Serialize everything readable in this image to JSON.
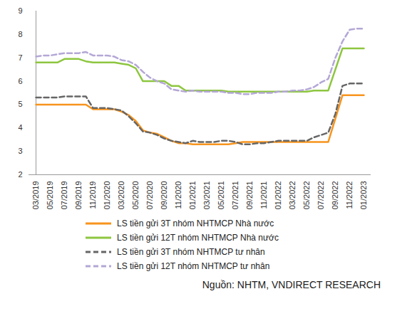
{
  "chart_data": {
    "type": "line",
    "caption": "Nguồn: NHTM, VNDIRECT RESEARCH",
    "categories": [
      "03/2019",
      null,
      "05/2019",
      null,
      "07/2019",
      null,
      "09/2019",
      null,
      "11/2019",
      null,
      "01/2020",
      null,
      "03/2020",
      null,
      "05/2020",
      null,
      "07/2020",
      null,
      "09/2020",
      null,
      "11/2020",
      null,
      "01/2021",
      null,
      "03/2021",
      null,
      "05/2021",
      null,
      "07/2021",
      null,
      "09/2021",
      null,
      "11/2021",
      null,
      "01/2022",
      null,
      "03/2022",
      null,
      "05/2022",
      null,
      "07/2022",
      null,
      "09/2022",
      null,
      "11/2022",
      null,
      "01/2023"
    ],
    "ylim": [
      2,
      9
    ],
    "yticks": [
      2,
      3,
      4,
      5,
      6,
      7,
      8,
      9
    ],
    "grid": false,
    "legend": "bottom",
    "series": [
      {
        "name": "LS tiền gửi 3T nhóm NHTMCP Nhà nước",
        "color": "#f7941d",
        "line_style": "solid",
        "values": [
          5,
          5,
          5,
          5,
          5,
          5,
          5,
          5,
          4.8,
          4.8,
          4.8,
          4.8,
          4.7,
          4.55,
          4.3,
          3.9,
          3.8,
          3.75,
          3.6,
          3.45,
          3.35,
          3.35,
          3.3,
          3.3,
          3.3,
          3.3,
          3.3,
          3.3,
          3.35,
          3.4,
          3.4,
          3.4,
          3.4,
          3.4,
          3.4,
          3.4,
          3.4,
          3.4,
          3.4,
          3.4,
          3.4,
          3.4,
          4.4,
          5.4,
          5.4,
          5.4,
          5.4
        ]
      },
      {
        "name": "LS tiền gửi 12T nhóm NHTMCP Nhà nước",
        "color": "#8dc63f",
        "line_style": "solid",
        "values": [
          6.8,
          6.8,
          6.8,
          6.8,
          6.95,
          6.95,
          6.95,
          6.85,
          6.8,
          6.8,
          6.8,
          6.8,
          6.75,
          6.7,
          6.55,
          6,
          6,
          6,
          6,
          5.8,
          5.8,
          5.6,
          5.6,
          5.6,
          5.6,
          5.6,
          5.6,
          5.55,
          5.55,
          5.55,
          5.55,
          5.55,
          5.55,
          5.55,
          5.55,
          5.55,
          5.55,
          5.55,
          5.55,
          5.6,
          5.6,
          5.6,
          6.5,
          7.4,
          7.4,
          7.4,
          7.4
        ]
      },
      {
        "name": "LS tiền gửi 3T nhóm NHTMCP tư nhân",
        "color": "#666666",
        "line_style": "dashed",
        "values": [
          5.3,
          5.3,
          5.3,
          5.3,
          5.35,
          5.35,
          5.35,
          5.35,
          4.85,
          4.85,
          4.85,
          4.8,
          4.75,
          4.5,
          4.2,
          3.85,
          3.8,
          3.7,
          3.55,
          3.45,
          3.4,
          3.35,
          3.45,
          3.4,
          3.4,
          3.4,
          3.45,
          3.45,
          3.4,
          3.3,
          3.3,
          3.35,
          3.35,
          3.4,
          3.45,
          3.45,
          3.45,
          3.45,
          3.45,
          3.6,
          3.7,
          3.8,
          4.6,
          5.8,
          5.9,
          5.9,
          5.9
        ]
      },
      {
        "name": "LS tiền gửi 12T nhóm NHTMCP tư nhân",
        "color": "#b4a7d6",
        "line_style": "dashed",
        "values": [
          7.05,
          7.1,
          7.1,
          7.15,
          7.2,
          7.2,
          7.2,
          7.25,
          7.1,
          7.1,
          7.1,
          7.05,
          6.9,
          6.85,
          6.7,
          6.4,
          6.15,
          6,
          5.9,
          5.65,
          5.6,
          5.55,
          5.6,
          5.55,
          5.55,
          5.55,
          5.55,
          5.5,
          5.5,
          5.45,
          5.45,
          5.5,
          5.5,
          5.5,
          5.55,
          5.55,
          5.6,
          5.6,
          5.65,
          5.75,
          5.95,
          6.1,
          7,
          7.7,
          8.2,
          8.25,
          8.25
        ]
      }
    ]
  }
}
